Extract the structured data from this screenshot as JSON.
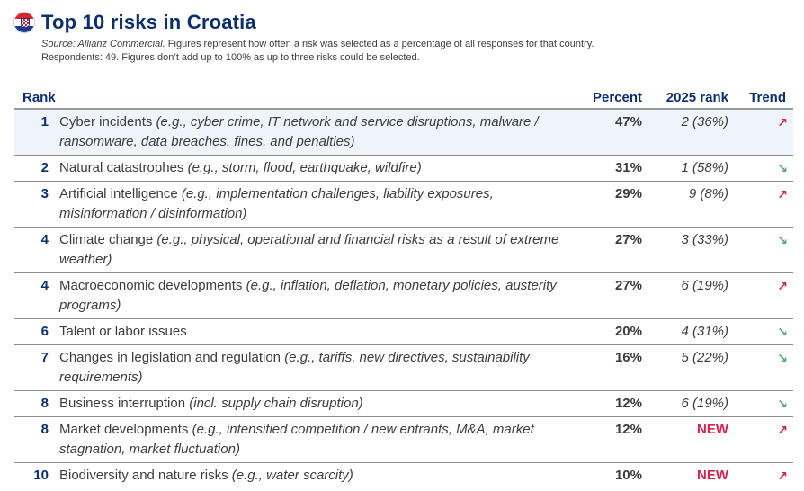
{
  "header": {
    "flag_icon": "croatia-flag-icon",
    "title": "Top 10 risks in Croatia",
    "source_label": "Source: Allianz Commercial.",
    "description_line1": " Figures represent how often a risk was selected as a percentage of all responses for that country.",
    "description_line2": "Respondents: 49. Figures don’t add up to 100% as up to three risks could be selected."
  },
  "table": {
    "columns": {
      "rank": "Rank",
      "risk": "",
      "percent": "Percent",
      "prev_rank": "2025 rank",
      "trend": "Trend"
    },
    "rows": [
      {
        "rank": "1",
        "name": "Cyber incidents ",
        "examples": "(e.g., cyber crime, IT network and service disruptions, malware / ransomware, data breaches, fines, and penalties)",
        "percent": "47%",
        "prev_rank": "2 (36%)",
        "trend": "up",
        "trend_glyph": "↗"
      },
      {
        "rank": "2",
        "name": "Natural catastrophes ",
        "examples": "(e.g., storm, flood, earthquake, wildfire)",
        "percent": "31%",
        "prev_rank": "1 (58%)",
        "trend": "down",
        "trend_glyph": "↘"
      },
      {
        "rank": "3",
        "name": "Artificial intelligence ",
        "examples": "(e.g., implementation challenges, liability exposures, misinformation / disinformation)",
        "percent": "29%",
        "prev_rank": "9 (8%)",
        "trend": "up",
        "trend_glyph": "↗"
      },
      {
        "rank": "4",
        "name": "Climate change ",
        "examples": "(e.g., physical, operational and financial risks as a result of extreme weather)",
        "percent": "27%",
        "prev_rank": "3 (33%)",
        "trend": "down",
        "trend_glyph": "↘"
      },
      {
        "rank": "4",
        "name": "Macroeconomic developments ",
        "examples": "(e.g., inflation, deflation, monetary policies, austerity programs)",
        "percent": "27%",
        "prev_rank": "6 (19%)",
        "trend": "up",
        "trend_glyph": "↗"
      },
      {
        "rank": "6",
        "name": "Talent or labor issues",
        "examples": "",
        "percent": "20%",
        "prev_rank": "4 (31%)",
        "trend": "down",
        "trend_glyph": "↘"
      },
      {
        "rank": "7",
        "name": "Changes in legislation and regulation ",
        "examples": "(e.g., tariffs, new directives, sustainability requirements)",
        "percent": "16%",
        "prev_rank": "5 (22%)",
        "trend": "down",
        "trend_glyph": "↘"
      },
      {
        "rank": "8",
        "name": "Business interruption ",
        "examples": "(incl. supply chain disruption)",
        "percent": "12%",
        "prev_rank": "6 (19%)",
        "trend": "down",
        "trend_glyph": "↘"
      },
      {
        "rank": "8",
        "name": "Market developments ",
        "examples": "(e.g., intensified competition / new entrants, M&A, market stagnation, market fluctuation)",
        "percent": "12%",
        "prev_rank": "NEW",
        "trend": "up",
        "trend_glyph": "↗"
      },
      {
        "rank": "10",
        "name": "Biodiversity and nature risks ",
        "examples": "(e.g., water scarcity)",
        "percent": "10%",
        "prev_rank": "NEW",
        "trend": "up",
        "trend_glyph": "↗"
      }
    ]
  },
  "colors": {
    "title": "#0c2f6e",
    "trend_up": "#d7234f",
    "trend_down": "#5aa66f",
    "new_label": "#d7234f",
    "highlight_row": "#eef4fa"
  }
}
